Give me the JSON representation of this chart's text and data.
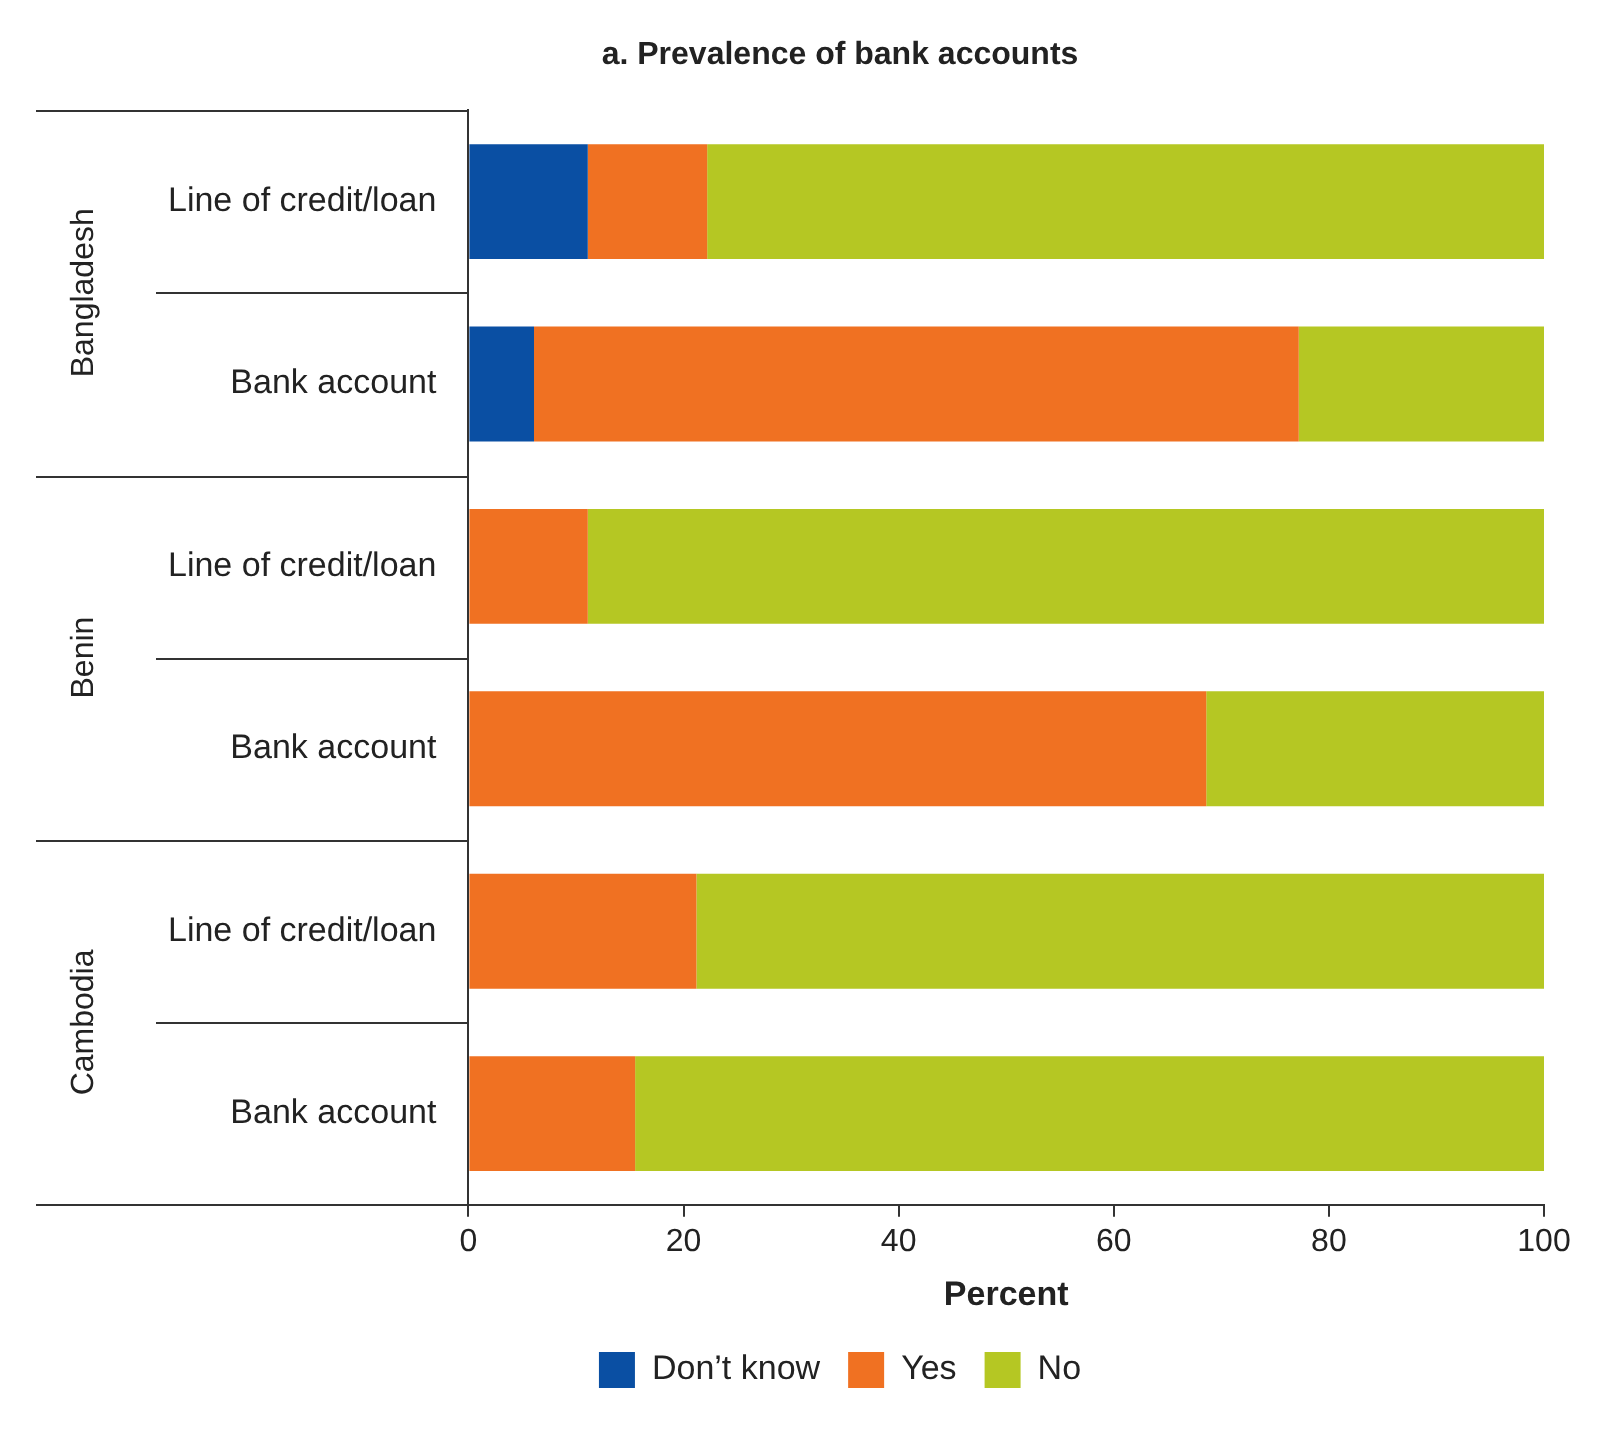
{
  "chart_data": {
    "type": "bar",
    "orientation": "horizontal",
    "stacked": true,
    "title": "a. Prevalence of bank accounts",
    "xlabel": "Percent",
    "categories": [
      "Line of credit/loan",
      "Bank account",
      "Line of credit/loan",
      "Bank account",
      "Line of credit/loan",
      "Bank account"
    ],
    "annotations": [
      "Bangladesh",
      "Benin",
      "Cambodia"
    ],
    "series": [
      {
        "name": "Don’t know",
        "color": "#0a4fa3",
        "values": [
          11.1,
          6.1,
          0,
          0,
          0,
          0
        ]
      },
      {
        "name": "Yes",
        "color": "#f07122",
        "values": [
          11.1,
          71.1,
          11.1,
          68.6,
          21.2,
          15.5
        ]
      },
      {
        "name": "No",
        "color": "#b5c723",
        "values": [
          77.8,
          22.8,
          88.9,
          31.4,
          78.8,
          84.5
        ]
      }
    ],
    "xlim": [
      0,
      100
    ],
    "xticks": [
      0,
      20,
      40,
      60,
      80,
      100
    ],
    "grid": false,
    "legend": "bottom"
  }
}
